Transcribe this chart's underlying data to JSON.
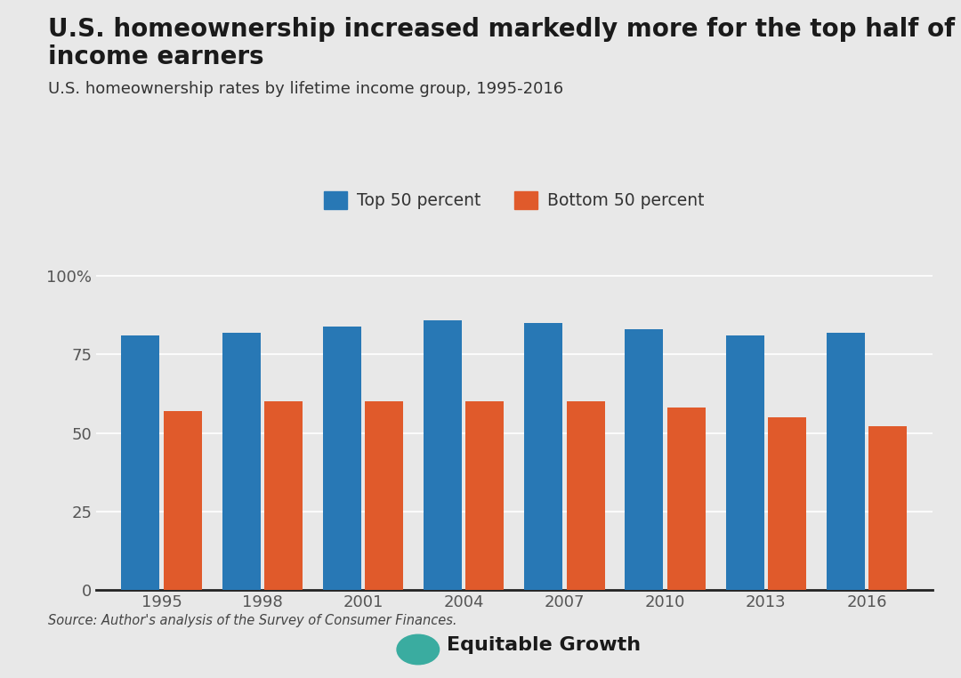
{
  "title_line1": "U.S. homeownership increased markedly more for the top half of",
  "title_line2": "income earners",
  "subtitle": "U.S. homeownership rates by lifetime income group, 1995-2016",
  "years": [
    1995,
    1998,
    2001,
    2004,
    2007,
    2010,
    2013,
    2016
  ],
  "top50": [
    81,
    82,
    84,
    86,
    85,
    83,
    81,
    82
  ],
  "bottom50": [
    57,
    60,
    60,
    60,
    60,
    58,
    55,
    52
  ],
  "top50_color": "#2878b5",
  "bottom50_color": "#e05a2b",
  "background_color": "#e8e8e8",
  "grid_color": "#ffffff",
  "axis_bg_color": "#e8e8e8",
  "text_color": "#1a1a1a",
  "source_text": "Source: Author's analysis of the Survey of Consumer Finances.",
  "legend_labels": [
    "Top 50 percent",
    "Bottom 50 percent"
  ],
  "ylim": [
    0,
    108
  ],
  "yticks": [
    0,
    25,
    50,
    75,
    100
  ],
  "ytick_labels": [
    "0",
    "25",
    "50",
    "75",
    "100%"
  ],
  "bar_width": 0.38
}
